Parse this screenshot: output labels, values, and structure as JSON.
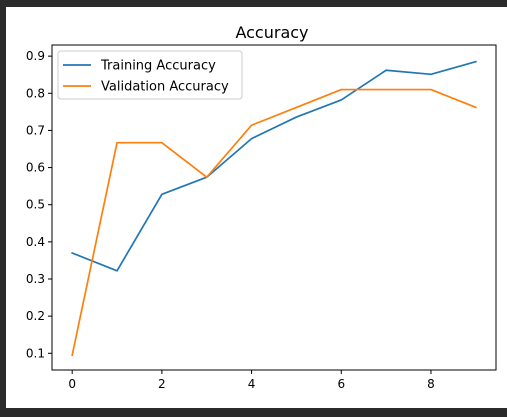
{
  "chart_data": {
    "type": "line",
    "title": "Accuracy",
    "xlabel": "",
    "ylabel": "",
    "xlim": [
      -0.45,
      9.45
    ],
    "ylim": [
      0.055,
      0.93
    ],
    "xticks": [
      0,
      2,
      4,
      6,
      8
    ],
    "yticks": [
      0.1,
      0.2,
      0.3,
      0.4,
      0.5,
      0.6,
      0.7,
      0.8,
      0.9
    ],
    "grid": false,
    "legend_position": "upper-left",
    "x": [
      0,
      1,
      2,
      3,
      4,
      5,
      6,
      7,
      8,
      9
    ],
    "series": [
      {
        "name": "Training Accuracy",
        "color": "#1f77b4",
        "values": [
          0.37,
          0.322,
          0.528,
          0.574,
          0.678,
          0.736,
          0.782,
          0.862,
          0.851,
          0.885
        ]
      },
      {
        "name": "Validation Accuracy",
        "color": "#ff7f0e",
        "values": [
          0.095,
          0.667,
          0.667,
          0.574,
          0.714,
          0.762,
          0.81,
          0.81,
          0.81,
          0.762
        ]
      }
    ]
  }
}
